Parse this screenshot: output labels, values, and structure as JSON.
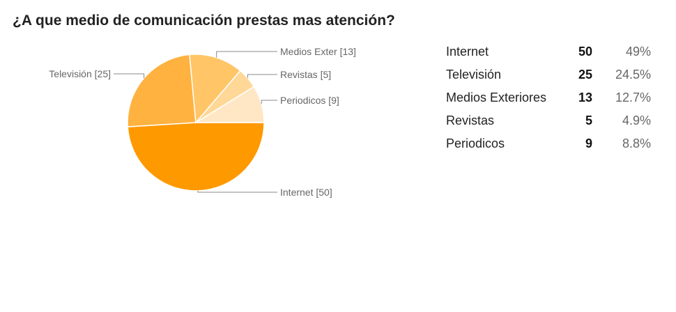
{
  "chart_data": {
    "type": "pie",
    "title": "¿A que medio de comunicación prestas mas atención?",
    "slices": [
      {
        "label": "Internet [50]",
        "value": 50,
        "color": "#ff9900"
      },
      {
        "label": "Televisión [25]",
        "value": 25,
        "color": "#ffb23f"
      },
      {
        "label": "Medios Exter [13]",
        "value": 13,
        "color": "#ffc567"
      },
      {
        "label": "Revistas [5]",
        "value": 5,
        "color": "#ffd796"
      },
      {
        "label": "Periodicos [9]",
        "value": 9,
        "color": "#ffe7c6"
      }
    ],
    "table": [
      {
        "name": "Internet",
        "count": "50",
        "percent": "49%"
      },
      {
        "name": "Televisión",
        "count": "25",
        "percent": "24.5%"
      },
      {
        "name": "Medios Exteriores",
        "count": "13",
        "percent": "12.7%"
      },
      {
        "name": "Revistas",
        "count": "5",
        "percent": "4.9%"
      },
      {
        "name": "Periodicos",
        "count": "9",
        "percent": "8.8%"
      }
    ]
  }
}
